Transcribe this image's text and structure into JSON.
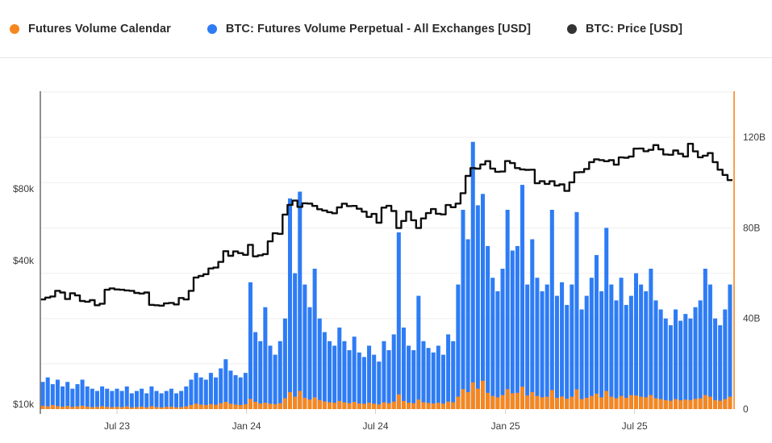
{
  "legend": {
    "items": [
      {
        "label": "Futures Volume Calendar",
        "color": "#F6871E"
      },
      {
        "label": "BTC: Futures Volume Perpetual - All Exchanges [USD]",
        "color": "#2E7CF5"
      },
      {
        "label": "BTC: Price [USD]",
        "color": "#333333"
      }
    ]
  },
  "colors": {
    "perp_bar": "#2E7CF5",
    "calendar_bar": "#F6871E",
    "price_line": "#0d0d0d",
    "left_axis_line": "#757575",
    "right_axis_line": "#F6871E",
    "grid_line": "#efefef",
    "tick_mark": "#cfcfcf"
  },
  "chart_data": {
    "type": "mixed",
    "x": {
      "start": "2023-03-19",
      "step": "1 week",
      "points": 140,
      "tick_labels": [
        "Jul 23",
        "Jan 24",
        "Jul 24",
        "Jan 25",
        "Jul 25"
      ],
      "tick_positions_weeks": [
        15,
        41.2,
        67.3,
        93.6,
        119.7
      ]
    },
    "left_axis": {
      "title": "BTC price [USD]",
      "scale": "log",
      "ticks": [
        {
          "label": "$80k",
          "value_k": 80
        },
        {
          "label": "$40k",
          "value_k": 40
        },
        {
          "label": "$10k",
          "value_k": 10
        }
      ]
    },
    "right_axis": {
      "title": "Futures volume [USD]",
      "scale": "linear",
      "max_B": 140,
      "grid_step_B": 20,
      "ticks": [
        {
          "label": "120B",
          "value_B": 120
        },
        {
          "label": "80B",
          "value_B": 80
        },
        {
          "label": "40B",
          "value_B": 40
        },
        {
          "label": "0",
          "value_B": 0
        }
      ]
    },
    "series": [
      {
        "name": "BTC: Futures Volume Perpetual - All Exchanges [USD]",
        "type": "bar",
        "axis": "right",
        "unit": "billions USD",
        "values": [
          12,
          14,
          11,
          13,
          10,
          12,
          9,
          11,
          13,
          10,
          9,
          8,
          10,
          9,
          8,
          9,
          8,
          10,
          7,
          8,
          9,
          7,
          10,
          8,
          7,
          8,
          9,
          7,
          8,
          10,
          13,
          16,
          14,
          13,
          16,
          14,
          18,
          22,
          17,
          15,
          14,
          16,
          56,
          34,
          30,
          45,
          28,
          24,
          30,
          40,
          93,
          60,
          96,
          55,
          45,
          62,
          40,
          34,
          30,
          28,
          36,
          30,
          26,
          32,
          25,
          23,
          28,
          24,
          21,
          30,
          26,
          33,
          78,
          36,
          28,
          26,
          50,
          30,
          27,
          25,
          28,
          24,
          33,
          30,
          55,
          88,
          75,
          118,
          90,
          95,
          72,
          58,
          52,
          62,
          88,
          70,
          72,
          99,
          55,
          75,
          58,
          52,
          55,
          88,
          50,
          56,
          46,
          55,
          87,
          44,
          50,
          58,
          68,
          52,
          80,
          55,
          48,
          58,
          46,
          50,
          60,
          55,
          52,
          62,
          48,
          44,
          40,
          37,
          44,
          39,
          42,
          40,
          45,
          48,
          62,
          55,
          40,
          37,
          44,
          55
        ]
      },
      {
        "name": "Futures Volume Calendar",
        "type": "bar",
        "axis": "right",
        "unit": "billions USD",
        "values": [
          1.5,
          1.2,
          1.8,
          1.3,
          1.1,
          1.4,
          1.0,
          1.2,
          1.5,
          1.1,
          0.9,
          1.0,
          1.3,
          1.0,
          0.9,
          1.0,
          0.9,
          1.2,
          0.8,
          0.9,
          1.1,
          0.8,
          1.3,
          0.9,
          0.8,
          1.0,
          1.1,
          0.8,
          0.9,
          1.2,
          1.8,
          2.4,
          2.0,
          1.8,
          2.2,
          1.9,
          2.6,
          3.2,
          2.4,
          2.0,
          1.8,
          2.2,
          4.5,
          3.2,
          2.5,
          2.8,
          2.4,
          2.2,
          2.6,
          4.8,
          7.5,
          5.5,
          8.0,
          5.0,
          4.2,
          5.2,
          4.0,
          3.4,
          3.0,
          2.8,
          3.6,
          3.0,
          2.6,
          3.2,
          2.5,
          2.3,
          2.8,
          2.4,
          2.1,
          3.0,
          2.6,
          3.3,
          6.5,
          3.6,
          2.8,
          2.6,
          4.2,
          3.0,
          2.7,
          2.5,
          2.8,
          2.4,
          3.3,
          3.0,
          5.5,
          8.8,
          7.5,
          11.8,
          9.0,
          12.5,
          7.2,
          5.8,
          5.2,
          6.2,
          8.8,
          7.0,
          7.2,
          9.9,
          6.0,
          7.5,
          5.8,
          5.2,
          5.5,
          8.4,
          5.0,
          5.6,
          4.6,
          5.5,
          8.7,
          4.4,
          5.0,
          5.8,
          6.8,
          5.2,
          8.0,
          5.5,
          4.8,
          5.8,
          5.0,
          6.2,
          6.0,
          5.5,
          5.2,
          6.2,
          4.8,
          4.4,
          4.0,
          3.7,
          4.4,
          3.9,
          4.2,
          4.0,
          4.5,
          4.8,
          6.2,
          5.5,
          4.0,
          3.7,
          4.4,
          5.5
        ]
      },
      {
        "name": "BTC: Price [USD]",
        "type": "line",
        "axis": "left",
        "unit": "thousands USD",
        "values": [
          27.5,
          28.0,
          28.3,
          29.9,
          29.4,
          27.6,
          29.2,
          28.6,
          27.1,
          26.9,
          27.3,
          26.0,
          26.4,
          30.2,
          30.6,
          30.3,
          30.2,
          30.0,
          29.9,
          29.3,
          29.1,
          29.4,
          26.1,
          26.0,
          25.9,
          26.5,
          26.6,
          26.2,
          27.9,
          27.5,
          29.9,
          34.0,
          34.5,
          35.1,
          37.1,
          37.4,
          39.5,
          43.8,
          41.9,
          43.7,
          43.0,
          42.3,
          46.6,
          41.7,
          42.1,
          42.6,
          48.2,
          52.1,
          51.8,
          62.4,
          68.5,
          71.4,
          67.2,
          69.6,
          69.4,
          67.8,
          65.7,
          64.9,
          63.9,
          63.2,
          66.9,
          69.3,
          67.7,
          67.8,
          66.0,
          64.2,
          61.0,
          62.8,
          57.7,
          66.7,
          67.9,
          64.6,
          54.8,
          58.7,
          64.2,
          59.1,
          54.8,
          60.1,
          63.3,
          65.8,
          62.9,
          62.5,
          68.4,
          67.0,
          69.4,
          76.7,
          90.6,
          97.7,
          97.2,
          101.2,
          104.5,
          97.3,
          94.3,
          94.5,
          104.6,
          102.6,
          97.7,
          96.5,
          96.1,
          96.2,
          84.4,
          86.1,
          83.9,
          86.1,
          82.6,
          83.5,
          78.4,
          85.2,
          93.8,
          94.0,
          96.9,
          103.5,
          106.4,
          105.6,
          104.4,
          105.5,
          101.0,
          108.3,
          108.0,
          109.2,
          117.9,
          118.0,
          115.0,
          116.5,
          122.0,
          117.2,
          111.5,
          111.1,
          115.8,
          112.2,
          109.3,
          123.5,
          114.8,
          108.5,
          110.2,
          113.0,
          103.5,
          96.2,
          91.5,
          87.0
        ]
      }
    ],
    "grid": true,
    "legend_position": "top"
  }
}
